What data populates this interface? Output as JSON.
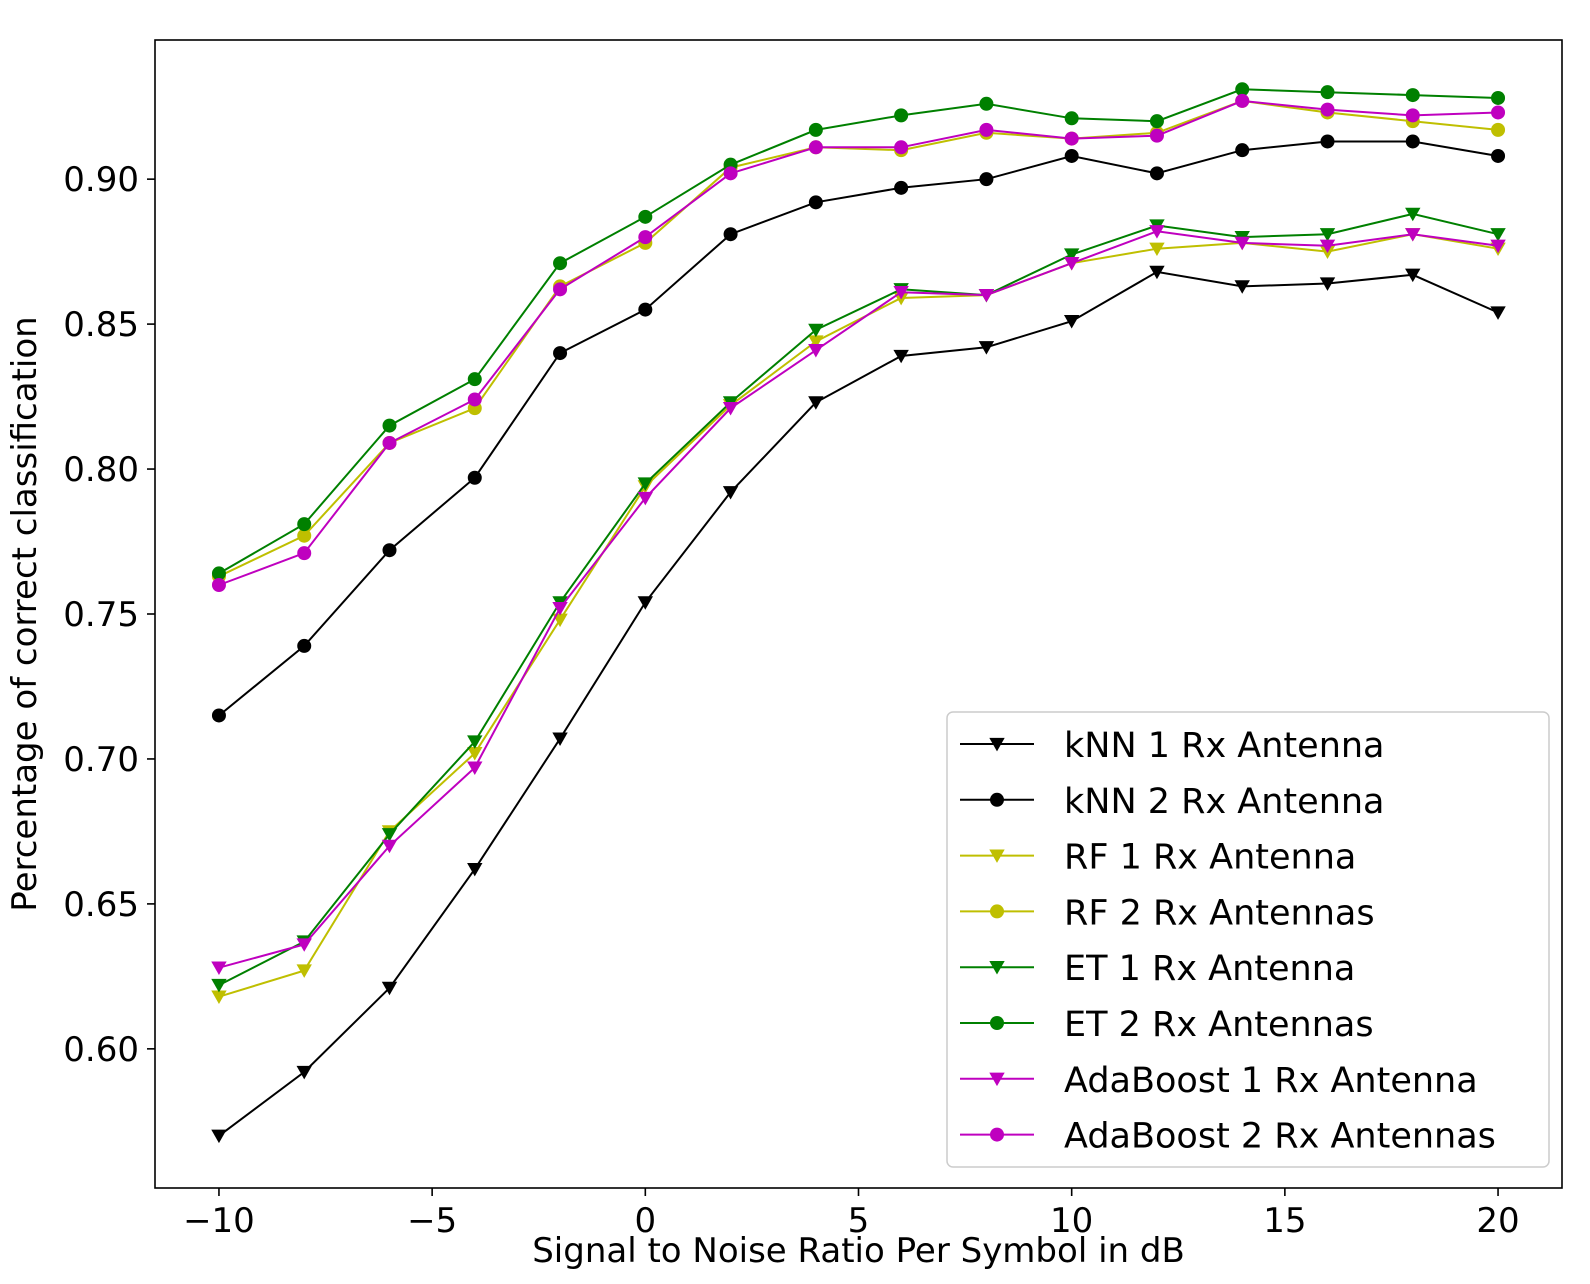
{
  "chart_data": {
    "type": "line",
    "title": "",
    "xlabel": "Signal to Noise Ratio Per Symbol in dB",
    "ylabel": "Percentage of correct classification",
    "xlim": [
      -11.5,
      21.5
    ],
    "ylim": [
      0.552,
      0.948
    ],
    "x_ticks": [
      -10,
      -5,
      0,
      5,
      10,
      15,
      20
    ],
    "x_tick_labels": [
      "−10",
      "−5",
      "0",
      "5",
      "10",
      "15",
      "20"
    ],
    "y_ticks": [
      0.6,
      0.65,
      0.7,
      0.75,
      0.8,
      0.85,
      0.9
    ],
    "y_tick_labels": [
      "0.60",
      "0.65",
      "0.70",
      "0.75",
      "0.80",
      "0.85",
      "0.90"
    ],
    "grid": false,
    "legend_position": "lower-right",
    "x": [
      -10,
      -8,
      -6,
      -4,
      -2,
      0,
      2,
      4,
      6,
      8,
      10,
      12,
      14,
      16,
      18,
      20
    ],
    "series": [
      {
        "name": "kNN 1 Rx Antenna",
        "color": "#000000",
        "marker": "triangle-down",
        "values": [
          0.57,
          0.592,
          0.621,
          0.662,
          0.707,
          0.754,
          0.792,
          0.823,
          0.839,
          0.842,
          0.851,
          0.868,
          0.863,
          0.864,
          0.867,
          0.854
        ]
      },
      {
        "name": "kNN 2 Rx Antenna",
        "color": "#000000",
        "marker": "circle",
        "values": [
          0.715,
          0.739,
          0.772,
          0.797,
          0.84,
          0.855,
          0.881,
          0.892,
          0.897,
          0.9,
          0.908,
          0.902,
          0.91,
          0.913,
          0.913,
          0.908
        ]
      },
      {
        "name": "RF 1 Rx Antenna",
        "color": "#bfbf00",
        "marker": "triangle-down",
        "values": [
          0.618,
          0.627,
          0.675,
          0.702,
          0.748,
          0.794,
          0.822,
          0.844,
          0.859,
          0.86,
          0.871,
          0.876,
          0.878,
          0.875,
          0.881,
          0.876
        ]
      },
      {
        "name": "RF 2 Rx Antennas",
        "color": "#bfbf00",
        "marker": "circle",
        "values": [
          0.763,
          0.777,
          0.809,
          0.821,
          0.863,
          0.878,
          0.904,
          0.911,
          0.91,
          0.916,
          0.914,
          0.916,
          0.927,
          0.923,
          0.92,
          0.917
        ]
      },
      {
        "name": "ET 1 Rx Antenna",
        "color": "#008000",
        "marker": "triangle-down",
        "values": [
          0.622,
          0.637,
          0.674,
          0.706,
          0.754,
          0.795,
          0.823,
          0.848,
          0.862,
          0.86,
          0.874,
          0.884,
          0.88,
          0.881,
          0.888,
          0.881
        ]
      },
      {
        "name": "ET 2 Rx Antennas",
        "color": "#008000",
        "marker": "circle",
        "values": [
          0.764,
          0.781,
          0.815,
          0.831,
          0.871,
          0.887,
          0.905,
          0.917,
          0.922,
          0.926,
          0.921,
          0.92,
          0.931,
          0.93,
          0.929,
          0.928
        ]
      },
      {
        "name": "AdaBoost 1 Rx Antenna",
        "color": "#bf00bf",
        "marker": "triangle-down",
        "values": [
          0.628,
          0.636,
          0.67,
          0.697,
          0.752,
          0.79,
          0.821,
          0.841,
          0.861,
          0.86,
          0.871,
          0.882,
          0.878,
          0.877,
          0.881,
          0.877
        ]
      },
      {
        "name": "AdaBoost 2 Rx Antennas",
        "color": "#bf00bf",
        "marker": "circle",
        "values": [
          0.76,
          0.771,
          0.809,
          0.824,
          0.862,
          0.88,
          0.902,
          0.911,
          0.911,
          0.917,
          0.914,
          0.915,
          0.927,
          0.924,
          0.922,
          0.923
        ]
      }
    ]
  }
}
